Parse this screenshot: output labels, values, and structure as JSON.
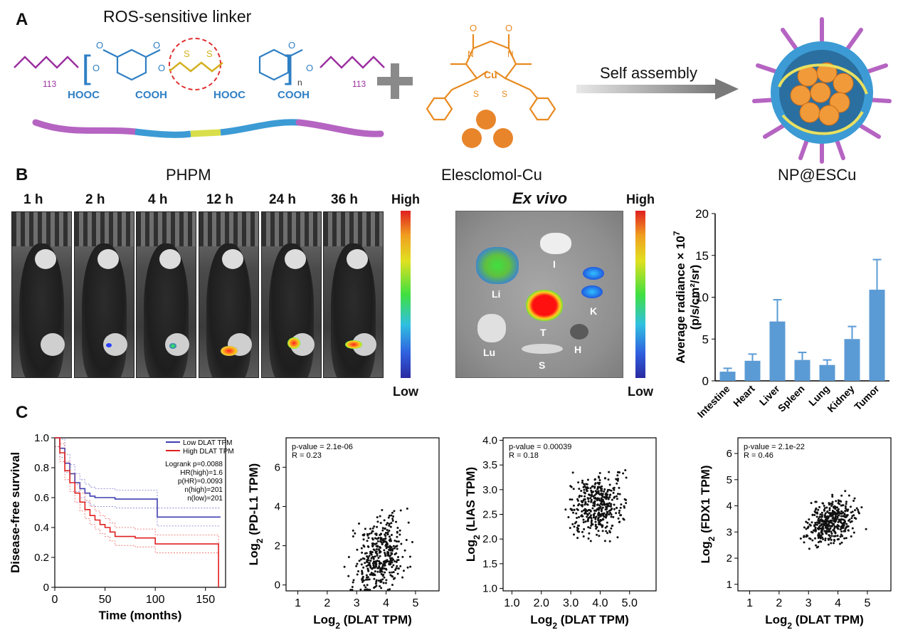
{
  "panel_a": {
    "label": "A",
    "linker_title": "ROS-sensitive linker",
    "self_assembly": "Self assembly",
    "chem": {
      "peg_n": "113",
      "hooc1": "HOOC",
      "cooh1": "COOH",
      "hooc2": "HOOC",
      "cooh2": "COOH",
      "peg_n2": "113",
      "n": "n",
      "cu": "Cu"
    },
    "captions": [
      "PHPM",
      "Elesclomol-Cu",
      "NP@ESCu"
    ]
  },
  "panel_b": {
    "label": "B",
    "timepoints": [
      "1 h",
      "2 h",
      "4 h",
      "12 h",
      "24 h",
      "36 h"
    ],
    "scale_high": "High",
    "scale_low": "Low",
    "exvivo_title": "Ex vivo",
    "exvivo_scale_high": "High",
    "exvivo_scale_low": "Low",
    "organs": [
      "Li",
      "I",
      "K",
      "T",
      "Lu",
      "H",
      "S"
    ]
  },
  "panel_c": {
    "label": "C"
  },
  "chart_data": [
    {
      "type": "bar",
      "categories": [
        "Intestine",
        "Heart",
        "Liver",
        "Spleen",
        "Lung",
        "Kidney",
        "Tumor"
      ],
      "values": [
        1.1,
        2.4,
        7.1,
        2.5,
        1.9,
        5.0,
        10.9
      ],
      "errors": [
        0.4,
        0.8,
        2.6,
        0.9,
        0.6,
        1.5,
        3.6
      ],
      "ylabel": "Average radiance × 10",
      "ylabel_exp": "7",
      "ylabel_unit": "(p/s/cm²/sr)",
      "ylim": [
        0,
        20
      ],
      "yticks": [
        0,
        5,
        10,
        15,
        20
      ],
      "color": "#5b9bd5"
    },
    {
      "type": "line",
      "xlabel": "Time (months)",
      "ylabel": "Disease-free survival",
      "xlim": [
        0,
        170
      ],
      "ylim": [
        0,
        1.0
      ],
      "xticks": [
        0,
        50,
        100,
        150
      ],
      "yticks": [
        "0",
        "0.2",
        "0.4",
        "0.6",
        "0.8",
        "1.0"
      ],
      "series": [
        {
          "name": "Low DLAT TPM",
          "color": "#3f3fb0",
          "x": [
            0,
            5,
            10,
            15,
            20,
            25,
            30,
            35,
            40,
            50,
            60,
            80,
            100,
            102,
            165
          ],
          "y": [
            1.0,
            0.93,
            0.83,
            0.76,
            0.7,
            0.66,
            0.63,
            0.61,
            0.6,
            0.6,
            0.59,
            0.59,
            0.59,
            0.47,
            0.47
          ]
        },
        {
          "name": "High DLAT TPM",
          "color": "#e02020",
          "x": [
            0,
            5,
            10,
            15,
            20,
            25,
            30,
            35,
            40,
            45,
            50,
            55,
            60,
            70,
            80,
            90,
            100,
            115,
            125,
            140,
            155,
            163,
            163
          ],
          "y": [
            1.0,
            0.9,
            0.78,
            0.7,
            0.63,
            0.57,
            0.52,
            0.48,
            0.45,
            0.42,
            0.4,
            0.37,
            0.34,
            0.34,
            0.33,
            0.33,
            0.29,
            0.29,
            0.29,
            0.29,
            0.29,
            0.29,
            0.0
          ]
        }
      ],
      "stats": [
        "Logrank p=0.0088",
        "HR(high)=1.6",
        "p(HR)=0.0093",
        "n(high)=201",
        "n(low)=201"
      ]
    },
    {
      "type": "scatter",
      "xlabel": "Log",
      "xlabel_sub": "2",
      "xlabel_rest": " (DLAT TPM)",
      "ylabel": "Log",
      "ylabel_sub": "2",
      "ylabel_rest": " (PD-L1 TPM)",
      "xlim": [
        0.6,
        5.8
      ],
      "ylim": [
        -0.3,
        7.5
      ],
      "xticks": [
        "1",
        "2",
        "3",
        "4",
        "5"
      ],
      "xtick_vals": [
        1,
        2,
        3,
        4,
        5
      ],
      "yticks": [
        "0",
        "2",
        "4",
        "6"
      ],
      "ytick_vals": [
        0,
        2,
        4,
        6
      ],
      "annot": [
        "p-value = 2.1e-06",
        "R = 0.23"
      ],
      "center": [
        3.8,
        1.5
      ],
      "spread": [
        0.6,
        1.3
      ],
      "slope": 0.55,
      "seed": 11,
      "n": 400
    },
    {
      "type": "scatter",
      "xlabel": "Log",
      "xlabel_sub": "2",
      "xlabel_rest": " (DLAT TPM)",
      "ylabel": "Log",
      "ylabel_sub": "2",
      "ylabel_rest": " (LIAS TPM)",
      "xlim": [
        0.7,
        5.9
      ],
      "ylim": [
        0.95,
        4.05
      ],
      "xticks": [
        "1.0",
        "2.0",
        "3.0",
        "4.0",
        "5.0"
      ],
      "xtick_vals": [
        1,
        2,
        3,
        4,
        5
      ],
      "yticks": [
        "1.0",
        "1.5",
        "2.0",
        "2.5",
        "3.0",
        "3.5",
        "4.0"
      ],
      "ytick_vals": [
        1.0,
        1.5,
        2.0,
        2.5,
        3.0,
        3.5,
        4.0
      ],
      "annot": [
        "p-value = 0.00039",
        "R = 0.18"
      ],
      "center": [
        3.9,
        2.65
      ],
      "spread": [
        0.6,
        0.4
      ],
      "slope": 0.15,
      "seed": 23,
      "n": 400
    },
    {
      "type": "scatter",
      "xlabel": "Log",
      "xlabel_sub": "2",
      "xlabel_rest": " (DLAT TPM)",
      "ylabel": "Log",
      "ylabel_sub": "2",
      "ylabel_rest": " (FDX1 TPM)",
      "xlim": [
        0.6,
        5.8
      ],
      "ylim": [
        0.75,
        6.6
      ],
      "xticks": [
        "1",
        "2",
        "3",
        "4",
        "5"
      ],
      "xtick_vals": [
        1,
        2,
        3,
        4,
        5
      ],
      "yticks": [
        "1",
        "2",
        "3",
        "4",
        "5",
        "6"
      ],
      "ytick_vals": [
        1,
        2,
        3,
        4,
        5,
        6
      ],
      "annot": [
        "p-value = 2.1e-22",
        "R = 0.46"
      ],
      "center": [
        3.8,
        3.4
      ],
      "spread": [
        0.6,
        0.55
      ],
      "slope": 0.55,
      "seed": 37,
      "n": 400
    }
  ]
}
